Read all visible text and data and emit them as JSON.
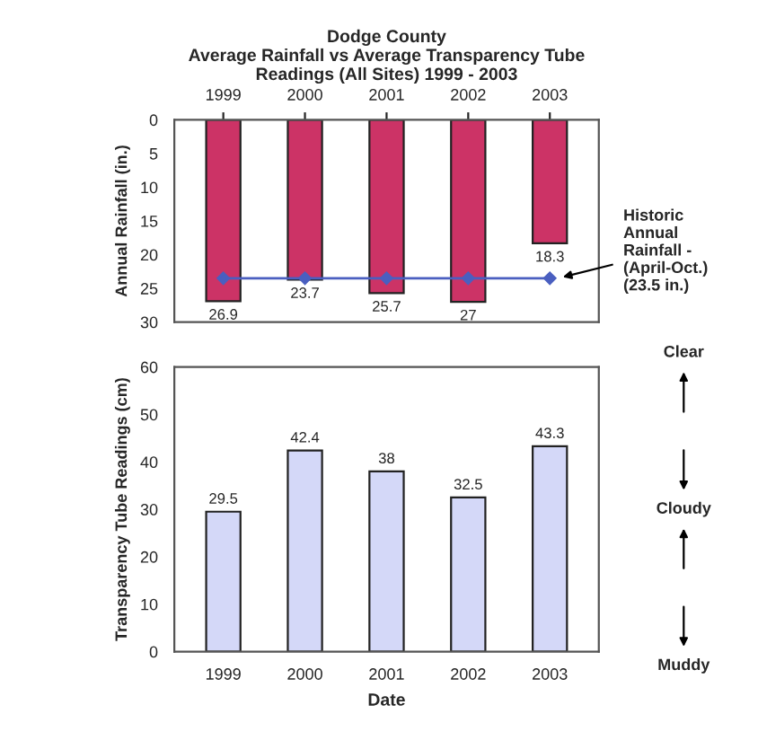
{
  "chart_data": [
    {
      "type": "bar",
      "title": "Dodge County\nAverage Rainfall vs Average Transparency Tube\nReadings (All Sites) 1999 - 2003",
      "ylabel": "Annual Rainfall (in.)",
      "categories": [
        "1999",
        "2000",
        "2001",
        "2002",
        "2003"
      ],
      "series": [
        {
          "color": "#cc3366",
          "values": [
            26.9,
            23.7,
            25.7,
            27,
            18.3
          ],
          "value_labels": [
            "26.9",
            "23.7",
            "25.7",
            "27",
            "18.3"
          ]
        },
        {
          "type": "line",
          "color": "#4a5fc0",
          "values": [
            23.5,
            23.5,
            23.5,
            23.5,
            23.5
          ]
        }
      ],
      "marker": "diamond",
      "ylim": [
        30,
        0
      ],
      "yticks": [
        0,
        5,
        10,
        15,
        20,
        25,
        30
      ],
      "annotations": [
        {
          "text": "Historic\nAnnual\nRainfall -\n(April-Oct.)\n(23.5 in.)",
          "x": "2003",
          "y": 23.5
        }
      ]
    },
    {
      "type": "bar",
      "xlabel": "Date",
      "ylabel": "Transparency Tube Readings (cm)",
      "categories": [
        "1999",
        "2000",
        "2001",
        "2002",
        "2003"
      ],
      "series": [
        {
          "color": "#d4d8f8",
          "values": [
            29.5,
            42.4,
            38,
            32.5,
            43.3
          ],
          "value_labels": [
            "29.5",
            "42.4",
            "38",
            "32.5",
            "43.3"
          ]
        }
      ],
      "ylim": [
        0,
        60
      ],
      "yticks": [
        0,
        10,
        20,
        30,
        40,
        50,
        60
      ],
      "annotations": [
        "Clear",
        "Cloudy",
        "Muddy"
      ]
    }
  ]
}
